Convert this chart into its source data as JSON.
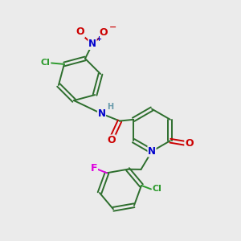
{
  "background_color": "#ebebeb",
  "atom_colors": {
    "C": "#2d7a2d",
    "N": "#0000cc",
    "O": "#cc0000",
    "Cl": "#2d9a2d",
    "F": "#dd00dd",
    "H": "#6699aa"
  },
  "bond_color": "#2d6e2d",
  "bond_width": 1.4,
  "figsize": [
    3.0,
    3.0
  ],
  "dpi": 100
}
